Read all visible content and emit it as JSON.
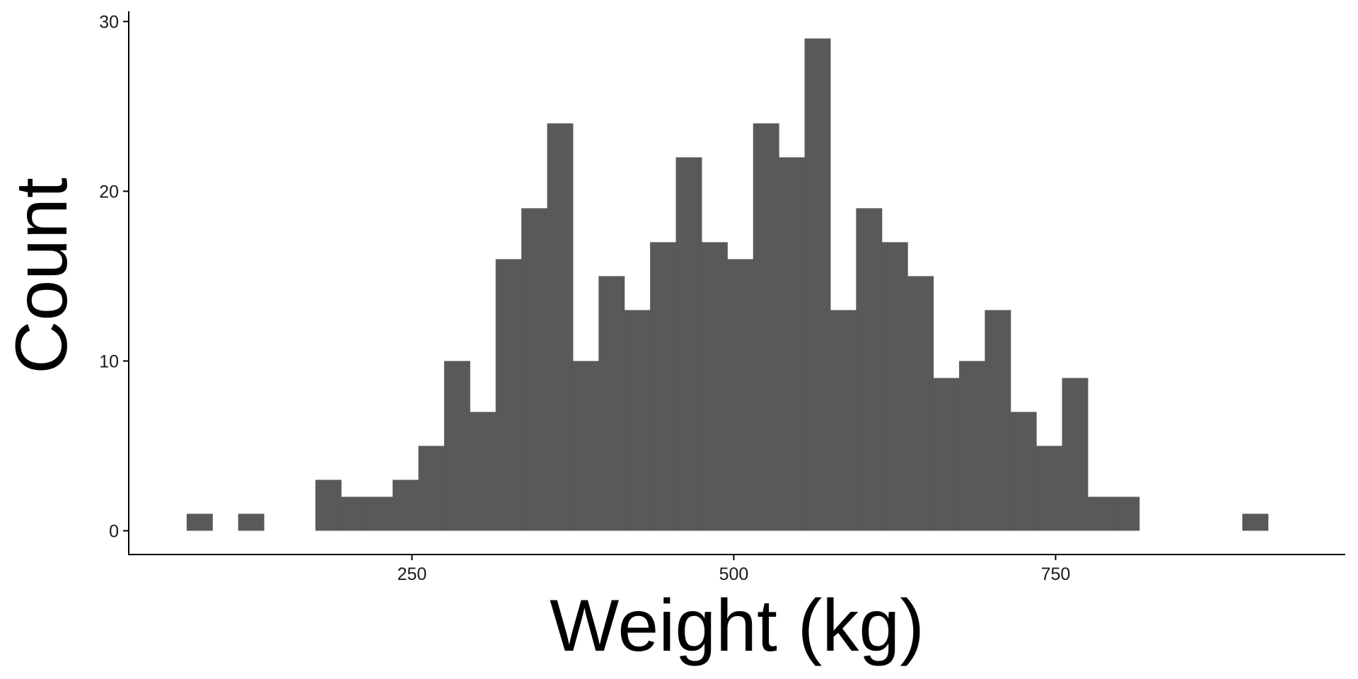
{
  "chart_data": {
    "type": "bar",
    "subtype": "histogram",
    "xlabel": "Weight (kg)",
    "ylabel": "Count",
    "xlim": [
      30,
      975
    ],
    "ylim": [
      -1.4,
      30.6
    ],
    "x_ticks": [
      250,
      500,
      750
    ],
    "x_tick_labels": [
      "250",
      "500",
      "750"
    ],
    "y_ticks": [
      0,
      10,
      20,
      30
    ],
    "y_tick_labels": [
      "0",
      "10",
      "20",
      "30"
    ],
    "grid": false,
    "legend": "none",
    "bar_color": "#595959",
    "axis_color": "#000000",
    "bins": [
      {
        "x0": 75,
        "x1": 95,
        "count": 1
      },
      {
        "x0": 115,
        "x1": 135,
        "count": 1
      },
      {
        "x0": 175,
        "x1": 195,
        "count": 3
      },
      {
        "x0": 195,
        "x1": 215,
        "count": 2
      },
      {
        "x0": 215,
        "x1": 235,
        "count": 2
      },
      {
        "x0": 235,
        "x1": 255,
        "count": 3
      },
      {
        "x0": 255,
        "x1": 275,
        "count": 5
      },
      {
        "x0": 275,
        "x1": 295,
        "count": 10
      },
      {
        "x0": 295,
        "x1": 315,
        "count": 7
      },
      {
        "x0": 315,
        "x1": 335,
        "count": 16
      },
      {
        "x0": 335,
        "x1": 355,
        "count": 19
      },
      {
        "x0": 355,
        "x1": 375,
        "count": 24
      },
      {
        "x0": 375,
        "x1": 395,
        "count": 10
      },
      {
        "x0": 395,
        "x1": 415,
        "count": 15
      },
      {
        "x0": 415,
        "x1": 435,
        "count": 13
      },
      {
        "x0": 435,
        "x1": 455,
        "count": 17
      },
      {
        "x0": 455,
        "x1": 475,
        "count": 22
      },
      {
        "x0": 475,
        "x1": 495,
        "count": 17
      },
      {
        "x0": 495,
        "x1": 515,
        "count": 16
      },
      {
        "x0": 515,
        "x1": 535,
        "count": 24
      },
      {
        "x0": 535,
        "x1": 555,
        "count": 22
      },
      {
        "x0": 555,
        "x1": 575,
        "count": 29
      },
      {
        "x0": 575,
        "x1": 595,
        "count": 13
      },
      {
        "x0": 595,
        "x1": 615,
        "count": 19
      },
      {
        "x0": 615,
        "x1": 635,
        "count": 17
      },
      {
        "x0": 635,
        "x1": 655,
        "count": 15
      },
      {
        "x0": 655,
        "x1": 675,
        "count": 9
      },
      {
        "x0": 675,
        "x1": 695,
        "count": 10
      },
      {
        "x0": 695,
        "x1": 715,
        "count": 13
      },
      {
        "x0": 715,
        "x1": 735,
        "count": 7
      },
      {
        "x0": 735,
        "x1": 755,
        "count": 5
      },
      {
        "x0": 755,
        "x1": 775,
        "count": 9
      },
      {
        "x0": 775,
        "x1": 795,
        "count": 2
      },
      {
        "x0": 795,
        "x1": 815,
        "count": 2
      },
      {
        "x0": 895,
        "x1": 915,
        "count": 1
      }
    ]
  }
}
